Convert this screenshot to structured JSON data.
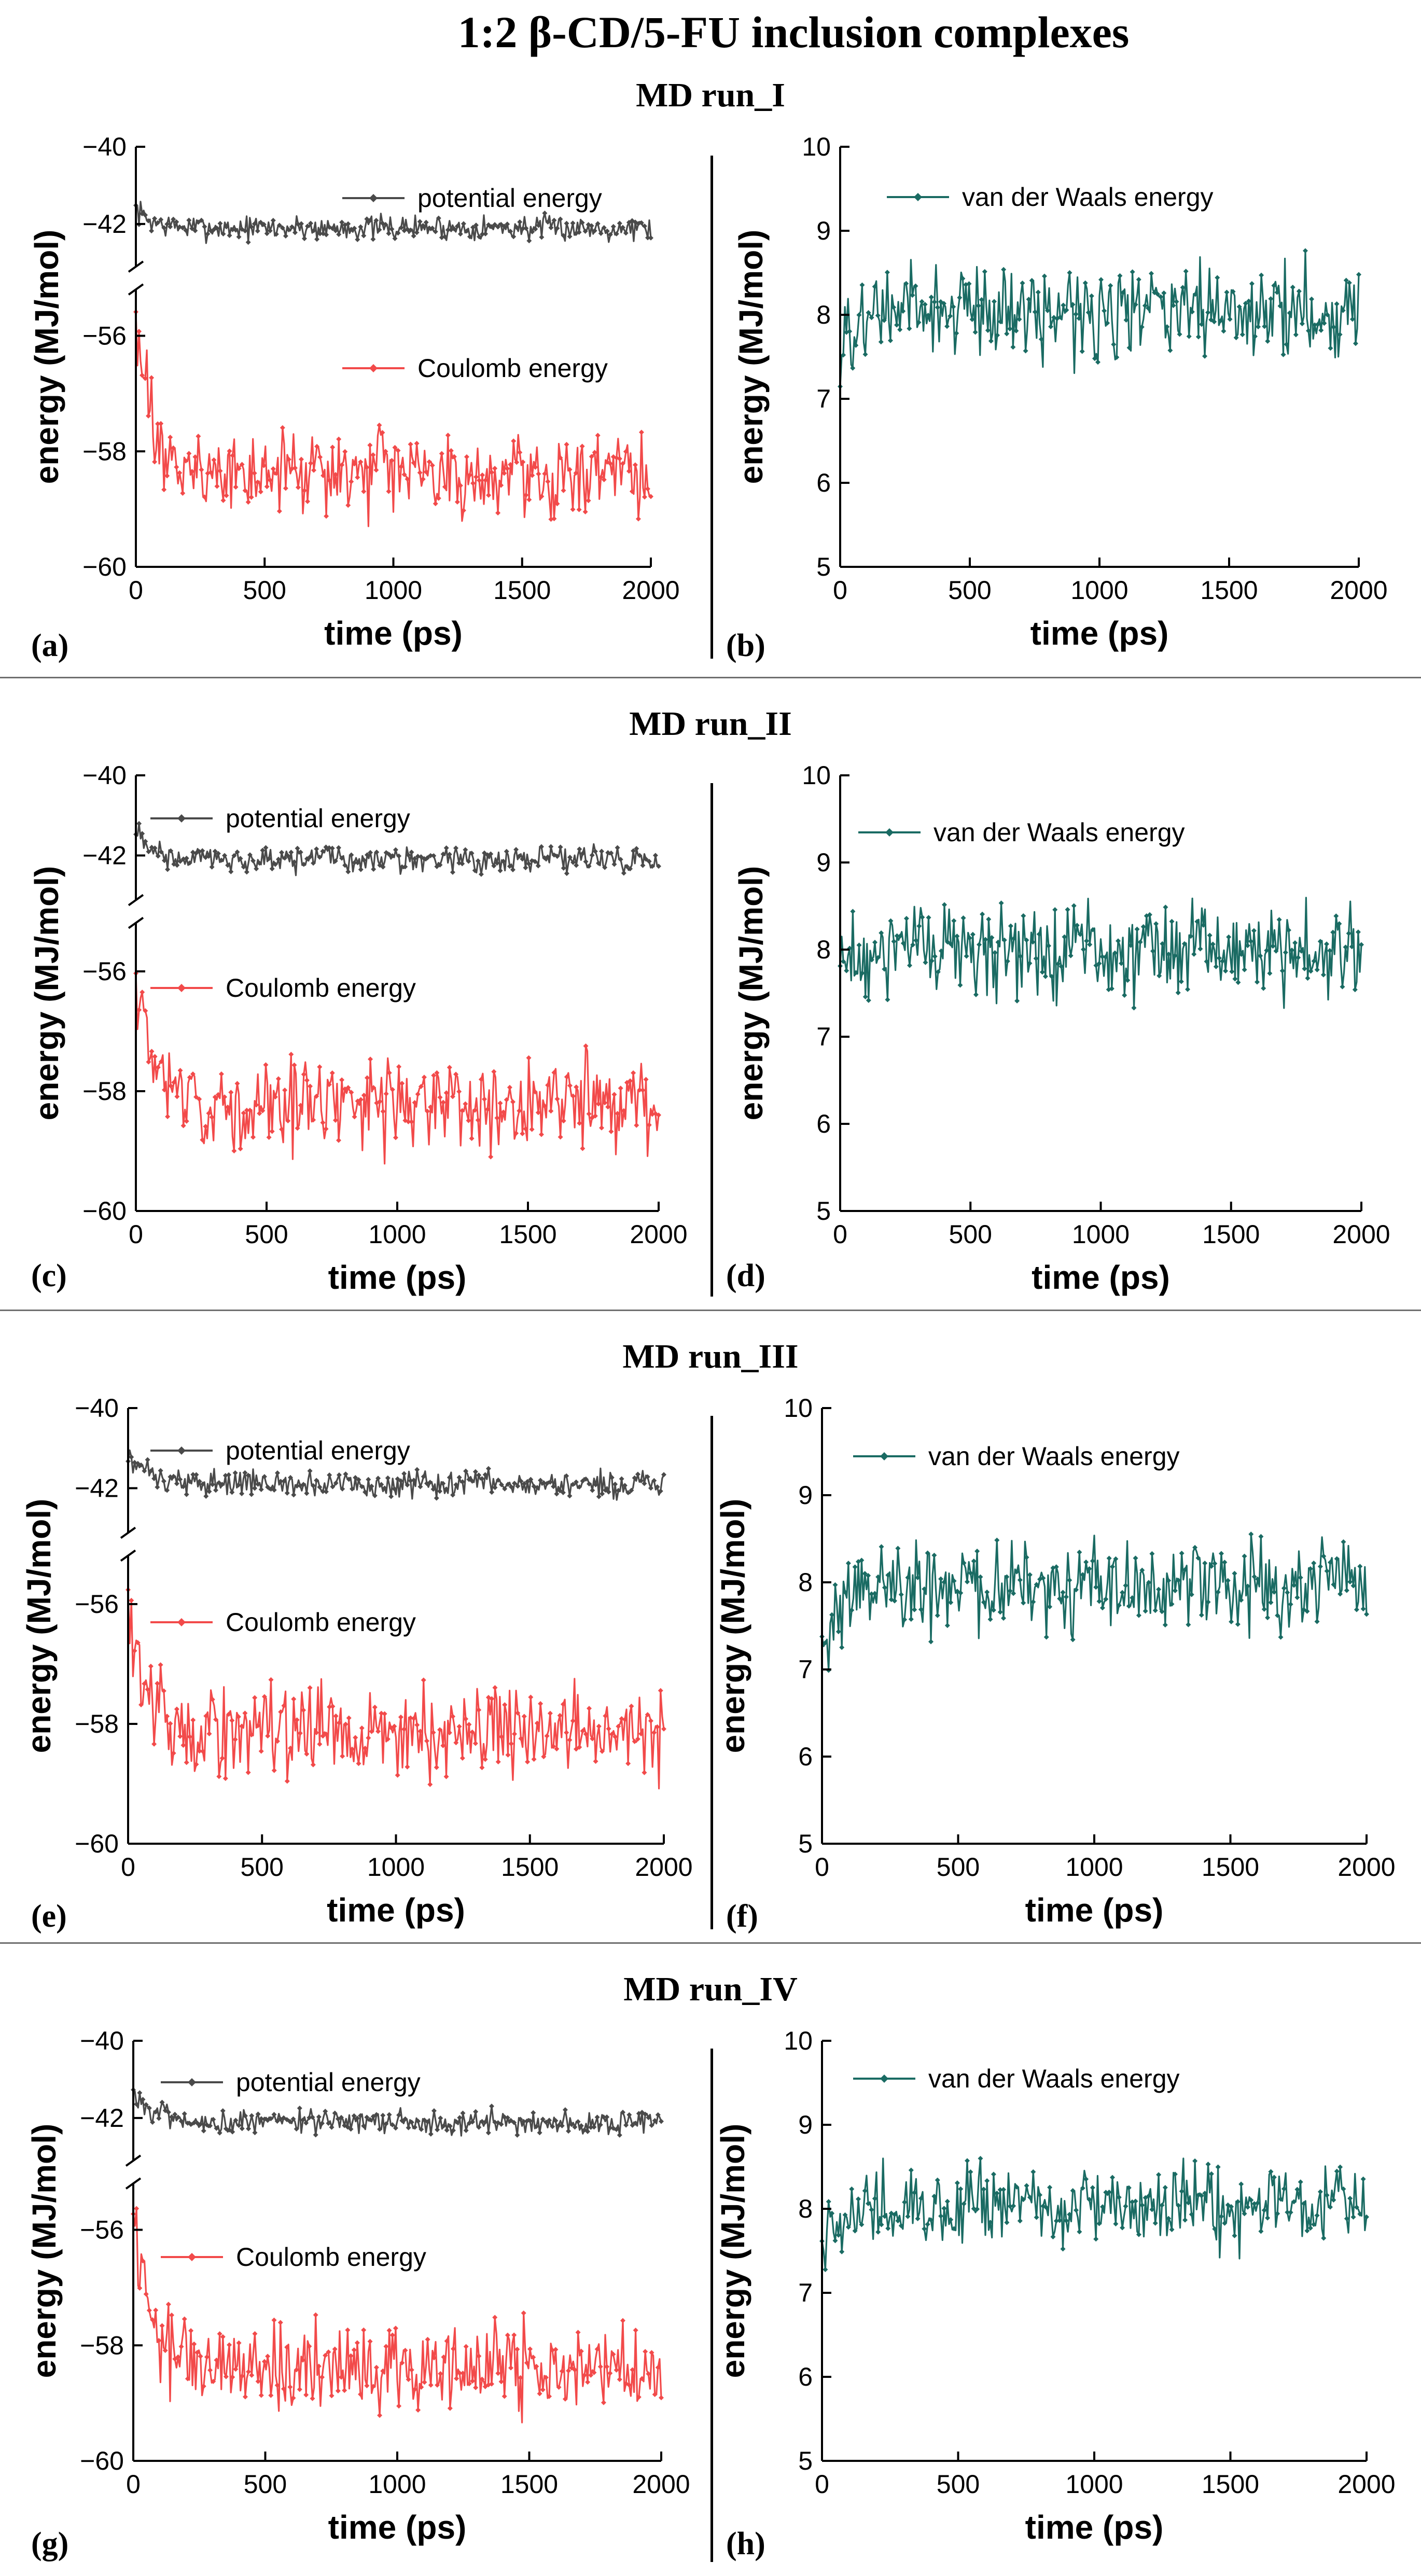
{
  "figure_title": "1:2 β-CD/5-FU inclusion complexes",
  "runs": [
    "MD run_I",
    "MD run_II",
    "MD run_III",
    "MD run_IV"
  ],
  "colors": {
    "potential": "#4a4a4a",
    "coulomb": "#f24a4a",
    "vdw": "#1a6b63",
    "axis": "#000000",
    "separator": "#6f6f6f"
  },
  "chart_data": [
    {
      "panel": "(a)",
      "type": "line",
      "run": "MD run_I",
      "xlabel": "time (ps)",
      "ylabel": "energy (MJ/mol)",
      "xlim": [
        0,
        2000
      ],
      "x_ticks": [
        "0",
        "500",
        "1000",
        "1500",
        "2000"
      ],
      "broken_y_axis": true,
      "y_ticks": [
        "-40",
        "-42",
        "-56",
        "-58",
        "-60"
      ],
      "series": [
        {
          "name": "potential energy",
          "color": "#4a4a4a",
          "start": -41.6,
          "mean": -42.1,
          "spread": 0.3
        },
        {
          "name": "Coulomb energy",
          "color": "#f24a4a",
          "start": -55.8,
          "mean": -58.4,
          "spread": 0.65
        }
      ]
    },
    {
      "panel": "(b)",
      "type": "line",
      "run": "MD run_I",
      "xlabel": "time (ps)",
      "ylabel": "energy (MJ/mol)",
      "xlim": [
        0,
        2000
      ],
      "ylim": [
        5,
        10
      ],
      "x_ticks": [
        "0",
        "500",
        "1000",
        "1500",
        "2000"
      ],
      "y_ticks": [
        "5",
        "6",
        "7",
        "8",
        "9",
        "10"
      ],
      "series": [
        {
          "name": "van der Waals energy",
          "color": "#1a6b63",
          "start": 7.4,
          "mean": 8.05,
          "spread": 0.5
        }
      ]
    },
    {
      "panel": "(c)",
      "type": "line",
      "run": "MD run_II",
      "xlabel": "time (ps)",
      "ylabel": "energy (MJ/mol)",
      "xlim": [
        0,
        2000
      ],
      "x_ticks": [
        "0",
        "500",
        "1000",
        "1500",
        "2000"
      ],
      "broken_y_axis": true,
      "y_ticks": [
        "-40",
        "-42",
        "-56",
        "-58",
        "-60"
      ],
      "series": [
        {
          "name": "potential energy",
          "color": "#4a4a4a",
          "start": -41.4,
          "mean": -42.1,
          "spread": 0.3
        },
        {
          "name": "Coulomb energy",
          "color": "#f24a4a",
          "start": -55.9,
          "mean": -58.2,
          "spread": 0.7
        }
      ]
    },
    {
      "panel": "(d)",
      "type": "line",
      "run": "MD run_II",
      "xlabel": "time (ps)",
      "ylabel": "energy (MJ/mol)",
      "xlim": [
        0,
        2000
      ],
      "ylim": [
        5,
        10
      ],
      "x_ticks": [
        "0",
        "500",
        "1000",
        "1500",
        "2000"
      ],
      "y_ticks": [
        "5",
        "6",
        "7",
        "8",
        "9",
        "10"
      ],
      "series": [
        {
          "name": "van der Waals energy",
          "color": "#1a6b63",
          "start": 7.8,
          "mean": 8.0,
          "spread": 0.5
        }
      ]
    },
    {
      "panel": "(e)",
      "type": "line",
      "run": "MD run_III",
      "xlabel": "time (ps)",
      "ylabel": "energy (MJ/mol)",
      "xlim": [
        0,
        2000
      ],
      "x_ticks": [
        "0",
        "500",
        "1000",
        "1500",
        "2000"
      ],
      "broken_y_axis": true,
      "y_ticks": [
        "-40",
        "-42",
        "-56",
        "-58",
        "-60"
      ],
      "series": [
        {
          "name": "potential energy",
          "color": "#4a4a4a",
          "start": -41.1,
          "mean": -41.9,
          "spread": 0.3
        },
        {
          "name": "Coulomb energy",
          "color": "#f24a4a",
          "start": -56.0,
          "mean": -58.1,
          "spread": 0.7
        }
      ]
    },
    {
      "panel": "(f)",
      "type": "line",
      "run": "MD run_III",
      "xlabel": "time (ps)",
      "ylabel": "energy (MJ/mol)",
      "xlim": [
        0,
        2000
      ],
      "ylim": [
        5,
        10
      ],
      "x_ticks": [
        "0",
        "500",
        "1000",
        "1500",
        "2000"
      ],
      "y_ticks": [
        "5",
        "6",
        "7",
        "8",
        "9",
        "10"
      ],
      "series": [
        {
          "name": "van der Waals energy",
          "color": "#1a6b63",
          "start": 7.1,
          "mean": 7.95,
          "spread": 0.5
        }
      ]
    },
    {
      "panel": "(g)",
      "type": "line",
      "run": "MD run_IV",
      "xlabel": "time (ps)",
      "ylabel": "energy (MJ/mol)",
      "xlim": [
        0,
        2000
      ],
      "x_ticks": [
        "0",
        "500",
        "1000",
        "1500",
        "2000"
      ],
      "broken_y_axis": true,
      "y_ticks": [
        "-40",
        "-42",
        "-56",
        "-58",
        "-60"
      ],
      "series": [
        {
          "name": "potential energy",
          "color": "#4a4a4a",
          "start": -41.2,
          "mean": -42.1,
          "spread": 0.3
        },
        {
          "name": "Coulomb energy",
          "color": "#f24a4a",
          "start": -55.6,
          "mean": -58.4,
          "spread": 0.7
        }
      ]
    },
    {
      "panel": "(h)",
      "type": "line",
      "run": "MD run_IV",
      "xlabel": "time (ps)",
      "ylabel": "energy (MJ/mol)",
      "xlim": [
        0,
        2000
      ],
      "ylim": [
        5,
        10
      ],
      "x_ticks": [
        "0",
        "500",
        "1000",
        "1500",
        "2000"
      ],
      "y_ticks": [
        "5",
        "6",
        "7",
        "8",
        "9",
        "10"
      ],
      "series": [
        {
          "name": "van der Waals energy",
          "color": "#1a6b63",
          "start": 7.6,
          "mean": 8.05,
          "spread": 0.45
        }
      ]
    }
  ]
}
